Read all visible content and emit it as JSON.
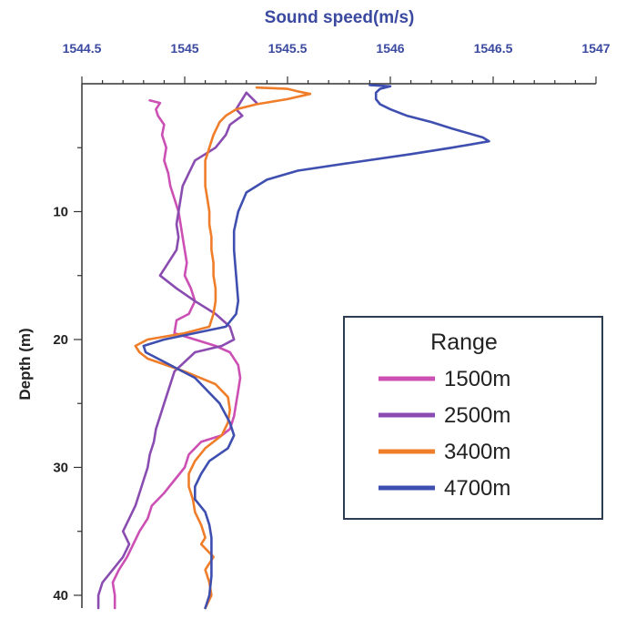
{
  "chart_data": {
    "type": "line",
    "title": "Sound speed(m/s)",
    "xlabel": "Sound speed(m/s)",
    "ylabel": "Depth (m)",
    "xlim": [
      1544.5,
      1547
    ],
    "ylim": [
      0,
      41
    ],
    "y_inverted": true,
    "x_axis_position": "top",
    "x_ticks": [
      1544.5,
      1545,
      1545.5,
      1546,
      1546.5,
      1547
    ],
    "x_tick_labels": [
      "1544.5",
      "1545",
      "1545.5",
      "1546",
      "1546.5",
      "1547"
    ],
    "y_ticks": [
      10,
      20,
      30,
      40
    ],
    "y_tick_labels": [
      "10",
      "20",
      "30",
      "40"
    ],
    "grid": false,
    "legend": {
      "title": "Range",
      "placement": "right"
    },
    "series": [
      {
        "name": "1500m",
        "color": "#cc4fb4",
        "points": [
          [
            1544.83,
            1.3
          ],
          [
            1544.88,
            1.5
          ],
          [
            1544.86,
            2.0
          ],
          [
            1544.87,
            2.5
          ],
          [
            1544.9,
            3.2
          ],
          [
            1544.89,
            4.0
          ],
          [
            1544.91,
            5.0
          ],
          [
            1544.9,
            6.0
          ],
          [
            1544.92,
            7.0
          ],
          [
            1544.93,
            8.0
          ],
          [
            1544.95,
            9.0
          ],
          [
            1544.97,
            10.0
          ],
          [
            1544.98,
            11.0
          ],
          [
            1544.99,
            12.0
          ],
          [
            1545.0,
            13.0
          ],
          [
            1545.01,
            14.0
          ],
          [
            1545.0,
            15.0
          ],
          [
            1545.03,
            16.0
          ],
          [
            1545.05,
            17.0
          ],
          [
            1545.02,
            18.0
          ],
          [
            1544.96,
            18.5
          ],
          [
            1544.95,
            19.5
          ],
          [
            1545.05,
            20.0
          ],
          [
            1545.15,
            20.5
          ],
          [
            1545.22,
            21.0
          ],
          [
            1545.26,
            22.0
          ],
          [
            1545.27,
            23.0
          ],
          [
            1545.26,
            24.0
          ],
          [
            1545.25,
            25.0
          ],
          [
            1545.24,
            26.0
          ],
          [
            1545.22,
            27.0
          ],
          [
            1545.18,
            27.5
          ],
          [
            1545.08,
            28.0
          ],
          [
            1545.02,
            29.0
          ],
          [
            1545.0,
            30.0
          ],
          [
            1544.95,
            31.0
          ],
          [
            1544.9,
            32.0
          ],
          [
            1544.84,
            33.0
          ],
          [
            1544.82,
            34.0
          ],
          [
            1544.78,
            35.0
          ],
          [
            1544.75,
            36.0
          ],
          [
            1544.72,
            37.0
          ],
          [
            1544.68,
            38.0
          ],
          [
            1544.65,
            39.0
          ],
          [
            1544.66,
            40.0
          ],
          [
            1544.66,
            41.0
          ]
        ]
      },
      {
        "name": "2500m",
        "color": "#8a4cb0",
        "points": [
          [
            1545.35,
            1.5
          ],
          [
            1545.3,
            0.7
          ],
          [
            1545.25,
            2.0
          ],
          [
            1545.28,
            2.5
          ],
          [
            1545.22,
            3.2
          ],
          [
            1545.2,
            4.0
          ],
          [
            1545.15,
            5.0
          ],
          [
            1545.1,
            5.5
          ],
          [
            1545.05,
            6.0
          ],
          [
            1545.02,
            7.0
          ],
          [
            1544.99,
            8.0
          ],
          [
            1544.98,
            9.0
          ],
          [
            1544.97,
            10.0
          ],
          [
            1544.96,
            11.0
          ],
          [
            1544.97,
            12.0
          ],
          [
            1544.96,
            13.0
          ],
          [
            1544.92,
            14.0
          ],
          [
            1544.88,
            15.0
          ],
          [
            1544.96,
            16.0
          ],
          [
            1545.05,
            17.0
          ],
          [
            1545.15,
            18.0
          ],
          [
            1545.22,
            19.0
          ],
          [
            1545.24,
            20.0
          ],
          [
            1545.18,
            20.5
          ],
          [
            1545.05,
            21.0
          ],
          [
            1544.95,
            22.5
          ],
          [
            1544.92,
            24.0
          ],
          [
            1544.9,
            25.0
          ],
          [
            1544.88,
            26.0
          ],
          [
            1544.86,
            27.0
          ],
          [
            1544.85,
            28.0
          ],
          [
            1544.83,
            29.0
          ],
          [
            1544.82,
            30.0
          ],
          [
            1544.8,
            31.0
          ],
          [
            1544.78,
            32.0
          ],
          [
            1544.76,
            33.0
          ],
          [
            1544.73,
            34.0
          ],
          [
            1544.7,
            35.0
          ],
          [
            1544.73,
            36.0
          ],
          [
            1544.7,
            37.0
          ],
          [
            1544.65,
            38.0
          ],
          [
            1544.6,
            39.0
          ],
          [
            1544.58,
            40.0
          ],
          [
            1544.58,
            41.0
          ]
        ]
      },
      {
        "name": "3400m",
        "color": "#f07d2a",
        "points": [
          [
            1545.35,
            0.3
          ],
          [
            1545.5,
            0.4
          ],
          [
            1545.55,
            0.6
          ],
          [
            1545.61,
            0.8
          ],
          [
            1545.5,
            1.2
          ],
          [
            1545.35,
            1.6
          ],
          [
            1545.25,
            2.0
          ],
          [
            1545.2,
            2.5
          ],
          [
            1545.17,
            3.0
          ],
          [
            1545.14,
            4.0
          ],
          [
            1545.12,
            5.0
          ],
          [
            1545.1,
            6.0
          ],
          [
            1545.1,
            7.0
          ],
          [
            1545.1,
            8.0
          ],
          [
            1545.11,
            9.0
          ],
          [
            1545.12,
            10.0
          ],
          [
            1545.12,
            11.0
          ],
          [
            1545.13,
            12.0
          ],
          [
            1545.13,
            13.0
          ],
          [
            1545.14,
            14.0
          ],
          [
            1545.14,
            15.0
          ],
          [
            1545.15,
            16.0
          ],
          [
            1545.15,
            17.0
          ],
          [
            1545.14,
            18.0
          ],
          [
            1545.12,
            19.0
          ],
          [
            1545.0,
            19.5
          ],
          [
            1544.82,
            20.0
          ],
          [
            1544.76,
            20.5
          ],
          [
            1544.78,
            21.0
          ],
          [
            1544.82,
            21.5
          ],
          [
            1545.0,
            22.5
          ],
          [
            1545.15,
            23.5
          ],
          [
            1545.21,
            24.5
          ],
          [
            1545.22,
            25.5
          ],
          [
            1545.21,
            26.5
          ],
          [
            1545.18,
            27.5
          ],
          [
            1545.1,
            28.5
          ],
          [
            1545.05,
            29.5
          ],
          [
            1545.02,
            30.5
          ],
          [
            1545.02,
            31.5
          ],
          [
            1545.04,
            32.5
          ],
          [
            1545.05,
            33.5
          ],
          [
            1545.08,
            34.5
          ],
          [
            1545.1,
            35.5
          ],
          [
            1545.08,
            36.0
          ],
          [
            1545.14,
            37.0
          ],
          [
            1545.1,
            38.0
          ],
          [
            1545.12,
            39.0
          ],
          [
            1545.13,
            40.0
          ],
          [
            1545.1,
            41.0
          ]
        ]
      },
      {
        "name": "4700m",
        "color": "#3f4fb0",
        "points": [
          [
            1545.9,
            0.1
          ],
          [
            1546.0,
            0.2
          ],
          [
            1545.95,
            0.4
          ],
          [
            1545.93,
            0.7
          ],
          [
            1545.93,
            1.2
          ],
          [
            1545.95,
            1.6
          ],
          [
            1546.0,
            2.0
          ],
          [
            1546.08,
            2.5
          ],
          [
            1546.2,
            3.0
          ],
          [
            1546.3,
            3.5
          ],
          [
            1546.45,
            4.2
          ],
          [
            1546.48,
            4.5
          ],
          [
            1546.3,
            5.0
          ],
          [
            1546.1,
            5.5
          ],
          [
            1545.8,
            6.2
          ],
          [
            1545.55,
            6.8
          ],
          [
            1545.4,
            7.5
          ],
          [
            1545.3,
            8.5
          ],
          [
            1545.26,
            10.0
          ],
          [
            1545.24,
            11.5
          ],
          [
            1545.24,
            13.0
          ],
          [
            1545.25,
            15.0
          ],
          [
            1545.26,
            17.0
          ],
          [
            1545.25,
            18.0
          ],
          [
            1545.2,
            19.0
          ],
          [
            1544.9,
            20.0
          ],
          [
            1544.8,
            20.5
          ],
          [
            1544.81,
            21.0
          ],
          [
            1545.05,
            23.0
          ],
          [
            1545.17,
            25.0
          ],
          [
            1545.22,
            26.5
          ],
          [
            1545.24,
            27.5
          ],
          [
            1545.21,
            28.5
          ],
          [
            1545.12,
            29.5
          ],
          [
            1545.08,
            30.5
          ],
          [
            1545.05,
            31.5
          ],
          [
            1545.05,
            32.5
          ],
          [
            1545.1,
            33.5
          ],
          [
            1545.12,
            34.5
          ],
          [
            1545.13,
            35.5
          ],
          [
            1545.13,
            37.0
          ],
          [
            1545.13,
            38.5
          ],
          [
            1545.12,
            40.0
          ],
          [
            1545.1,
            41.0
          ]
        ]
      }
    ]
  }
}
